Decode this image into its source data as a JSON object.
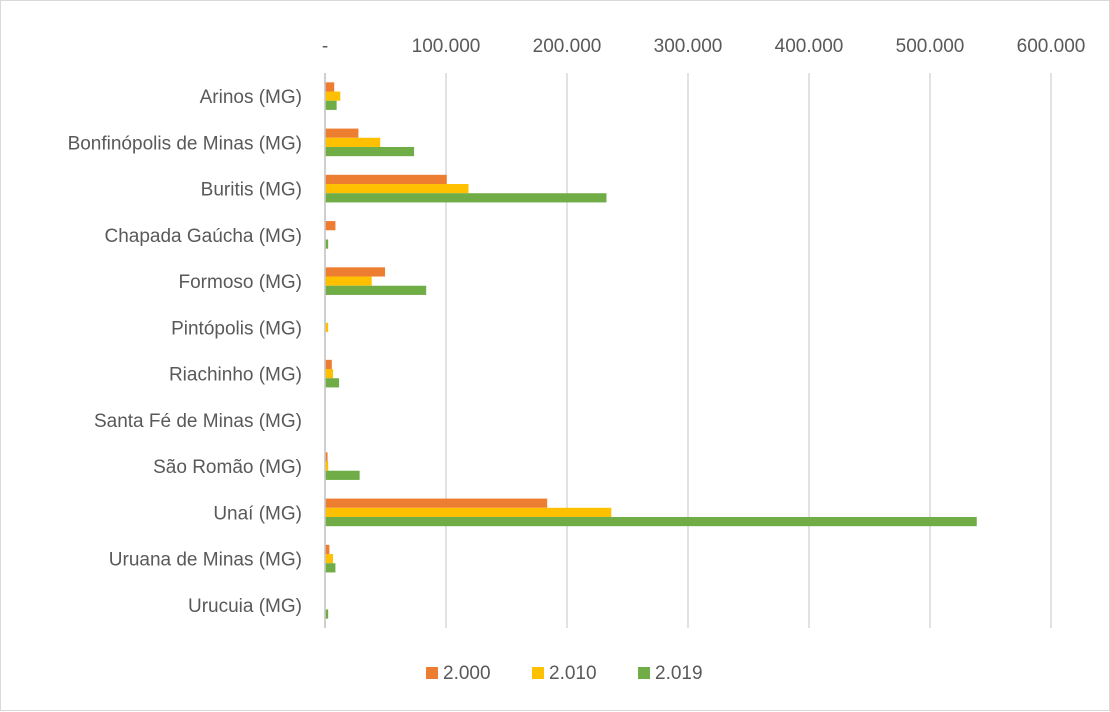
{
  "chart_data": {
    "type": "bar",
    "orientation": "horizontal",
    "categories": [
      "Arinos (MG)",
      "Bonfinópolis de Minas (MG)",
      "Buritis (MG)",
      "Chapada Gaúcha (MG)",
      "Formoso (MG)",
      "Pintópolis (MG)",
      "Riachinho (MG)",
      "Santa Fé de Minas (MG)",
      "São Romão (MG)",
      "Unaí (MG)",
      "Uruana de Minas (MG)",
      "Urucuia (MG)"
    ],
    "series": [
      {
        "name": "2.000",
        "color": "#ed7d31",
        "values": [
          7000,
          27000,
          100000,
          8000,
          49000,
          0,
          5000,
          0,
          1500,
          183000,
          3000,
          0
        ]
      },
      {
        "name": "2.010",
        "color": "#ffc000",
        "values": [
          12000,
          45000,
          118000,
          0,
          38000,
          2000,
          6000,
          0,
          2000,
          236000,
          6000,
          0
        ]
      },
      {
        "name": "2.019",
        "color": "#70ad47",
        "values": [
          9000,
          73000,
          232000,
          2000,
          83000,
          0,
          11000,
          0,
          28000,
          538000,
          8000,
          2000
        ]
      }
    ],
    "xlim": [
      0,
      600000
    ],
    "x_ticks": [
      {
        "value": 0,
        "label": "-"
      },
      {
        "value": 100000,
        "label": "100.000"
      },
      {
        "value": 200000,
        "label": "200.000"
      },
      {
        "value": 300000,
        "label": "300.000"
      },
      {
        "value": 400000,
        "label": "400.000"
      },
      {
        "value": 500000,
        "label": "500.000"
      },
      {
        "value": 600000,
        "label": "600.000"
      }
    ],
    "x_axis_position": "top",
    "grid": true,
    "gridline_color": "#d9d9d9",
    "legend_position": "bottom",
    "title": "",
    "xlabel": "",
    "ylabel": ""
  }
}
